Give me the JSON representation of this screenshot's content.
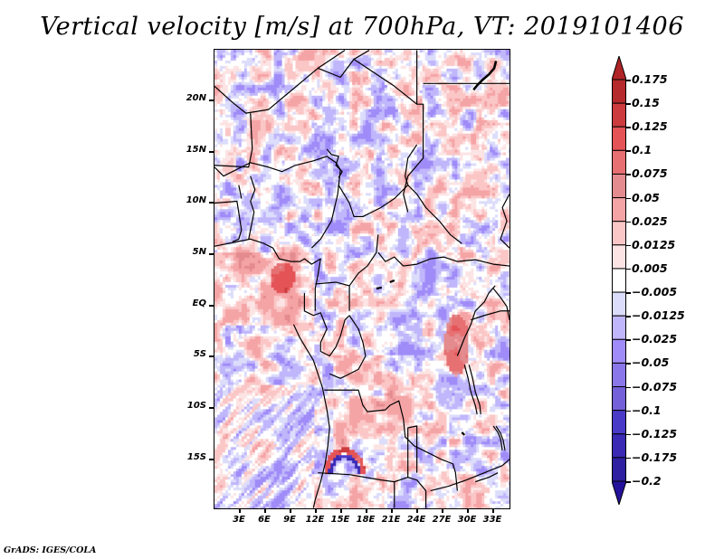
{
  "chart_data": {
    "type": "heatmap",
    "title": "Vertical velocity [m/s] at 700hPa, VT: 2019101406",
    "variable": "Vertical velocity",
    "units": "m/s",
    "level": "700hPa",
    "valid_time": "2019101406",
    "xlabel": "",
    "ylabel": "",
    "x_range": [
      0,
      35.5
    ],
    "y_range": [
      -20,
      24.5
    ],
    "x_ticks": [
      "3E",
      "6E",
      "9E",
      "12E",
      "15E",
      "18E",
      "21E",
      "24E",
      "27E",
      "30E",
      "33E"
    ],
    "x_tick_values": [
      3,
      6,
      9,
      12,
      15,
      18,
      21,
      24,
      27,
      30,
      33
    ],
    "y_ticks": [
      "20N",
      "15N",
      "10N",
      "5N",
      "EQ",
      "5S",
      "10S",
      "15S"
    ],
    "y_tick_values": [
      20,
      15,
      10,
      5,
      0,
      -5,
      -10,
      -15
    ],
    "grid": false,
    "colorbar": {
      "placement": "right",
      "extend": "both",
      "levels": [
        0.175,
        0.15,
        0.125,
        0.1,
        0.075,
        0.05,
        0.025,
        0.0125,
        0.005,
        -0.005,
        -0.0125,
        -0.025,
        -0.05,
        -0.075,
        -0.1,
        -0.125,
        -0.175,
        -0.2
      ],
      "labels": [
        "0.175",
        "0.15",
        "0.125",
        "0.1",
        "0.075",
        "0.05",
        "0.025",
        "0.0125",
        "0.005",
        "−0.005",
        "−0.0125",
        "−0.025",
        "−0.05",
        "−0.075",
        "−0.1",
        "−0.125",
        "−0.175",
        "−0.2"
      ],
      "colors": [
        "#b02326",
        "#b52a2c",
        "#cc3b3e",
        "#e45356",
        "#e67072",
        "#e38b8e",
        "#f5a4a6",
        "#fbc6c6",
        "#fde4e4",
        "#ffffff",
        "#dcdcfb",
        "#c0b6fb",
        "#a08cf8",
        "#8a78ea",
        "#7460d8",
        "#4a3ac8",
        "#3a2ab4",
        "#2e20a0",
        "#24129a"
      ]
    },
    "features": {
      "notable_maxima": "strong upward motion along Gulf of Guinea coast near 9E 3N and along Albertine Rift near 29E 5S",
      "notable_arc": "curved red/blue couplet near 14-17E 15S"
    }
  },
  "footer": "GrADS: IGES/COLA"
}
